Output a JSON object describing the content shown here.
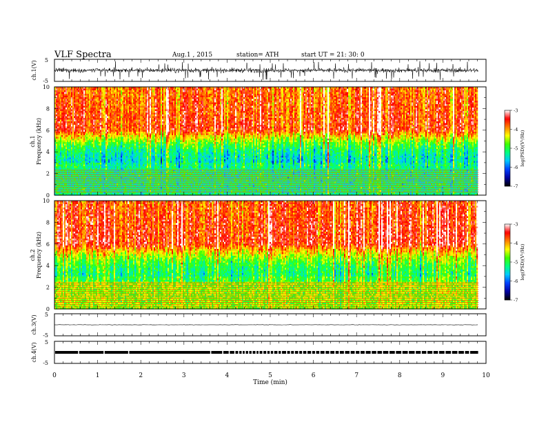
{
  "header": {
    "title": "VLF  Spectra",
    "date": "Aug.1  , 2015",
    "station": "station= ATH",
    "start": "start  UT =   21: 30: 0"
  },
  "chart_data": [
    {
      "id": "ch1-waveform",
      "type": "line",
      "ylabel": "ch.1(V)",
      "ylim": [
        -5,
        5
      ],
      "yticks": [
        "5",
        "-5"
      ],
      "xlim": [
        0,
        9.83
      ],
      "data_end_min": 9.83,
      "description_of_signal": "noisy broadband waveform, amplitude mostly within ±2 V with spikes to about ±4 V"
    },
    {
      "id": "ch1-spectrogram",
      "type": "heatmap",
      "ylabel": "ch.1\nFrequency  (kHz)",
      "ylabel_lines": [
        "ch.1",
        "Frequency  (kHz)"
      ],
      "ylim": [
        0,
        10
      ],
      "yticks": [
        "0",
        "2",
        "4",
        "6",
        "8",
        "10"
      ],
      "xlim": [
        0,
        10
      ],
      "data_end_min": 9.83,
      "colorbar": {
        "label": "log(PSD)(V²/Hz)",
        "range": [
          -7,
          -3
        ],
        "ticks": [
          "-3",
          "-4",
          "-5",
          "-6",
          "-7"
        ],
        "colormap": [
          "#000000",
          "#0000a0",
          "#0040ff",
          "#00c8ff",
          "#00ff80",
          "#40ff00",
          "#ffff00",
          "#ff8000",
          "#ff0000",
          "#ffffff"
        ]
      },
      "structure": {
        "high_band_khz": [
          6,
          10
        ],
        "high_band_level": -3.6,
        "mid_band_khz": [
          3,
          6
        ],
        "mid_band_level": -5.4,
        "low_band_khz": [
          0,
          2.5
        ],
        "low_band_level": -5.2,
        "horizontal_lines_khz": [
          0.3,
          0.5,
          0.7,
          0.9,
          1.1,
          1.3,
          1.5,
          1.7,
          1.9,
          2.1,
          2.3
        ]
      }
    },
    {
      "id": "ch2-spectrogram",
      "type": "heatmap",
      "ylabel": "ch.2\nFrequency  (kHz)",
      "ylabel_lines": [
        "ch.2",
        "Frequency  (kHz)"
      ],
      "ylim": [
        0,
        10
      ],
      "yticks": [
        "0",
        "2",
        "4",
        "6",
        "8",
        "10"
      ],
      "xlim": [
        0,
        10
      ],
      "data_end_min": 9.83,
      "colorbar": {
        "label": "log(PSD)(V²/Hz)",
        "range": [
          -7,
          -3
        ],
        "ticks": [
          "-3",
          "-4",
          "-5",
          "-6",
          "-7"
        ],
        "colormap": [
          "#000000",
          "#0000a0",
          "#0040ff",
          "#00c8ff",
          "#00ff80",
          "#40ff00",
          "#ffff00",
          "#ff8000",
          "#ff0000",
          "#ffffff"
        ]
      },
      "structure": {
        "high_band_khz": [
          6,
          10
        ],
        "high_band_level": -3.5,
        "mid_band_khz": [
          3,
          6
        ],
        "mid_band_level": -5.1,
        "low_band_khz": [
          0,
          2.5
        ],
        "low_band_level": -4.6,
        "horizontal_lines_khz": [
          0.2,
          0.4,
          0.6,
          0.8,
          1.0,
          1.2,
          1.4,
          1.6,
          1.8,
          2.0,
          2.2,
          2.4
        ]
      }
    },
    {
      "id": "ch3-waveform",
      "type": "line",
      "ylabel": "ch.3(V)",
      "ylim": [
        -5,
        5
      ],
      "yticks": [
        "5",
        "-5"
      ],
      "xlim": [
        0,
        10
      ],
      "data_end_min": 9.83,
      "level": 0
    },
    {
      "id": "ch4-waveform",
      "type": "line",
      "ylabel": "ch.4(V)",
      "ylim": [
        -5,
        5
      ],
      "yticks": [
        "5",
        "-5"
      ],
      "xlim": [
        0,
        10
      ],
      "data_end_min": 9.83,
      "level": 0,
      "gaps_min": [
        0.56,
        1.15,
        1.72,
        3.62,
        3.9,
        4.05,
        4.18,
        4.27,
        4.35,
        4.42,
        4.5,
        4.58,
        4.67,
        4.74,
        4.83,
        4.92,
        5.0,
        5.08,
        5.18,
        5.26,
        5.38,
        5.47,
        5.56,
        5.66,
        5.75,
        5.85,
        5.96,
        6.05,
        6.15,
        6.27,
        6.38,
        6.5,
        6.6,
        6.72,
        6.85,
        6.97,
        7.08,
        7.2,
        7.34,
        7.47,
        7.6,
        7.75,
        7.9,
        8.05,
        8.2,
        8.36,
        8.5,
        8.63,
        8.77,
        8.9,
        9.05,
        9.2,
        9.35,
        9.5,
        9.62
      ]
    }
  ],
  "xaxis": {
    "label": "Time  (min)",
    "ticks": [
      "0",
      "1",
      "2",
      "3",
      "4",
      "5",
      "6",
      "7",
      "8",
      "9",
      "10"
    ],
    "range": [
      0,
      10
    ]
  }
}
